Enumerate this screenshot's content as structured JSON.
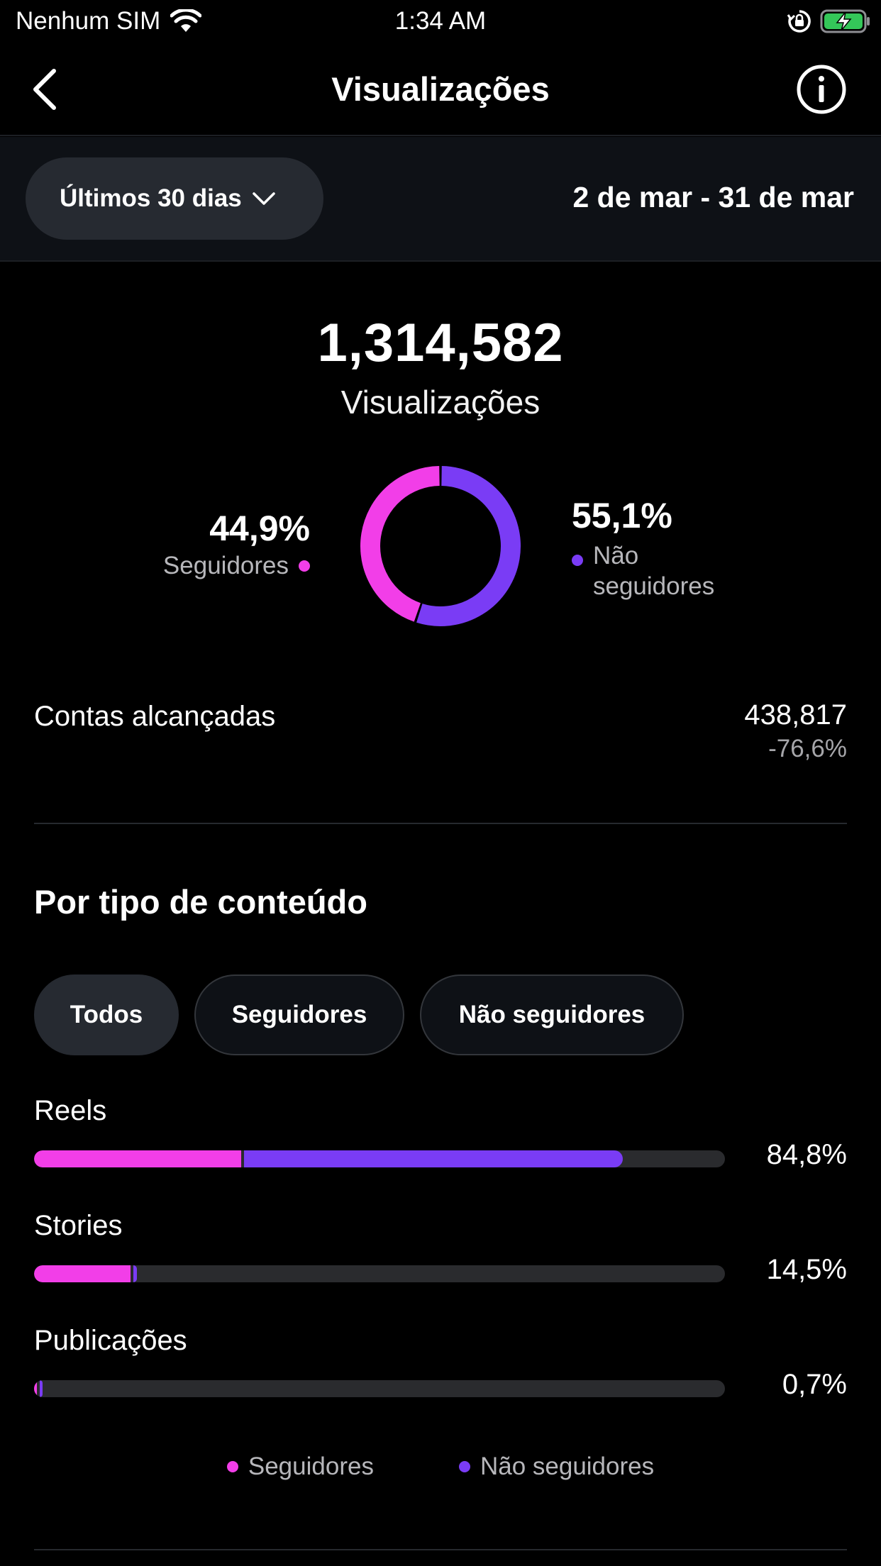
{
  "status_bar": {
    "carrier": "Nenhum SIM",
    "time": "1:34 AM",
    "icons": [
      "wifi-icon",
      "orientation-lock-icon",
      "battery-charging-icon"
    ]
  },
  "nav": {
    "title": "Visualizações",
    "back_icon": "chevron-left-icon",
    "info_icon": "info-icon"
  },
  "filter": {
    "range_label": "Últimos 30 dias",
    "date_range": "2 de mar - 31 de mar"
  },
  "summary": {
    "total": "1,314,582",
    "total_label": "Visualizações",
    "followers_pct": "44,9%",
    "followers_label": "Seguidores",
    "non_followers_pct": "55,1%",
    "non_followers_label_line1": "Não",
    "non_followers_label_line2": "seguidores",
    "followers_fraction": 0.449,
    "non_followers_fraction": 0.551
  },
  "reached": {
    "label": "Contas alcançadas",
    "value": "438,817",
    "change": "-76,6%"
  },
  "content_type": {
    "title": "Por tipo de conteúdo",
    "tabs": [
      "Todos",
      "Seguidores",
      "Não seguidores"
    ],
    "rows": [
      {
        "label": "Reels",
        "pct": "84,8%",
        "followers_fraction": 0.3,
        "non_followers_fraction": 0.548
      },
      {
        "label": "Stories",
        "pct": "14,5%",
        "followers_fraction": 0.14,
        "non_followers_fraction": 0.005
      },
      {
        "label": "Publicações",
        "pct": "0,7%",
        "followers_fraction": 0.004,
        "non_followers_fraction": 0.003
      }
    ],
    "legend": [
      "Seguidores",
      "Não seguidores"
    ]
  },
  "colors": {
    "followers": "#f23ee8",
    "non_followers": "#7a3cf5",
    "background": "#000000"
  }
}
